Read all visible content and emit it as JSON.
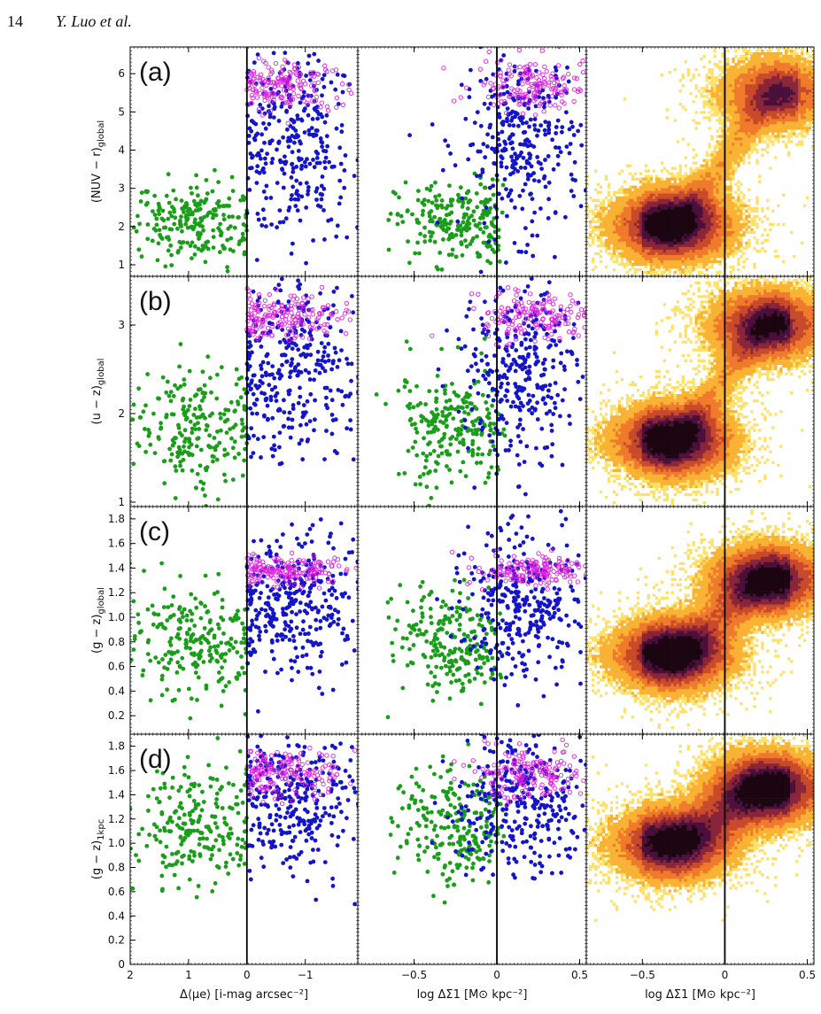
{
  "header": {
    "page_number": "14",
    "running_head": "Y. Luo et al."
  },
  "chart_data": {
    "type": "scatter",
    "layout": "4 rows × 3 columns; columns 1–2 scatter, column 3 density histogram",
    "colors": {
      "green": "#1a9e1a",
      "blue": "#1414c8",
      "magenta": "#e020e0",
      "divider": "#000000"
    },
    "columns": [
      {
        "xlabel": "Δ⟨μe⟩ [i-mag arcsec⁻²]",
        "xlim": [
          2,
          -1.9
        ],
        "xticks": [
          2,
          1,
          0,
          -1
        ],
        "xtick_labels": [
          "2",
          "1",
          "0",
          "−1"
        ],
        "divider_x": 0
      },
      {
        "xlabel": "log ΔΣ1 [M⊙ kpc⁻²]",
        "xlim": [
          -0.84,
          0.54
        ],
        "xticks": [
          -0.5,
          0,
          0.5
        ],
        "xtick_labels": [
          "−0.5",
          "0",
          "0.5"
        ],
        "divider_x": 0
      },
      {
        "xlabel": "log ΔΣ1 [M⊙ kpc⁻²]",
        "xlim": [
          -0.84,
          0.54
        ],
        "xticks": [
          -0.5,
          0,
          0.5
        ],
        "xtick_labels": [
          "−0.5",
          "0",
          "0.5"
        ],
        "divider_x": 0
      }
    ],
    "rows": [
      {
        "panel": "(a)",
        "ylabel": "(NUV − r)global",
        "ylabel_main": "(NUV − r)",
        "ylabel_sub": "global",
        "ylim": [
          0.7,
          6.7
        ],
        "yticks": [
          1,
          2,
          3,
          4,
          5,
          6
        ],
        "ytick_labels": [
          "1",
          "2",
          "3",
          "4",
          "5",
          "6"
        ],
        "groups": {
          "green": {
            "y_center": 2.1,
            "y_spread": 0.55,
            "x1_center": 0.9,
            "x2_center": -0.25
          },
          "blue": {
            "y_center": 4.2,
            "y_spread": 1.2,
            "x1_center": -0.8,
            "x2_center": 0.15
          },
          "magenta": {
            "y_center": 5.7,
            "y_spread": 0.35,
            "x1_center": -0.6,
            "x2_center": 0.22
          }
        },
        "density_peaks": [
          {
            "x": -0.3,
            "y": 2.05,
            "w": 1.0
          },
          {
            "x": 0.3,
            "y": 5.5,
            "w": 0.6
          }
        ]
      },
      {
        "panel": "(b)",
        "ylabel": "(u − z)global",
        "ylabel_main": "(u − z)",
        "ylabel_sub": "global",
        "ylim": [
          0.95,
          3.55
        ],
        "yticks": [
          1,
          2,
          3
        ],
        "ytick_labels": [
          "1",
          "2",
          "3"
        ],
        "groups": {
          "green": {
            "y_center": 1.85,
            "y_spread": 0.35,
            "x1_center": 0.9,
            "x2_center": -0.25
          },
          "blue": {
            "y_center": 2.5,
            "y_spread": 0.5,
            "x1_center": -0.8,
            "x2_center": 0.15
          },
          "magenta": {
            "y_center": 3.1,
            "y_spread": 0.13,
            "x1_center": -0.6,
            "x2_center": 0.22
          }
        },
        "density_peaks": [
          {
            "x": -0.3,
            "y": 1.7,
            "w": 1.0
          },
          {
            "x": 0.25,
            "y": 3.0,
            "w": 0.8
          }
        ]
      },
      {
        "panel": "(c)",
        "ylabel": "(g − z)global",
        "ylabel_main": "(g − z)",
        "ylabel_sub": "global",
        "ylim": [
          0.05,
          1.9
        ],
        "yticks": [
          0.2,
          0.4,
          0.6,
          0.8,
          1.0,
          1.2,
          1.4,
          1.6,
          1.8
        ],
        "ytick_labels": [
          "0.2",
          "0.4",
          "0.6",
          "0.8",
          "1.0",
          "1.2",
          "1.4",
          "1.6",
          "1.8"
        ],
        "groups": {
          "green": {
            "y_center": 0.8,
            "y_spread": 0.22,
            "x1_center": 0.9,
            "x2_center": -0.25
          },
          "blue": {
            "y_center": 1.1,
            "y_spread": 0.28,
            "x1_center": -0.8,
            "x2_center": 0.15
          },
          "magenta": {
            "y_center": 1.38,
            "y_spread": 0.06,
            "x1_center": -0.6,
            "x2_center": 0.22
          }
        },
        "density_peaks": [
          {
            "x": -0.3,
            "y": 0.7,
            "w": 1.0
          },
          {
            "x": 0.25,
            "y": 1.3,
            "w": 0.9
          }
        ]
      },
      {
        "panel": "(d)",
        "ylabel": "(g − z)1kpc",
        "ylabel_main": "(g − z)",
        "ylabel_sub": "1kpc",
        "ylim": [
          0,
          1.9
        ],
        "yticks": [
          0,
          0.2,
          0.4,
          0.6,
          0.8,
          1.0,
          1.2,
          1.4,
          1.6,
          1.8
        ],
        "ytick_labels": [
          "0",
          "0.2",
          "0.4",
          "0.6",
          "0.8",
          "1.0",
          "1.2",
          "1.4",
          "1.6",
          "1.8"
        ],
        "groups": {
          "green": {
            "y_center": 1.15,
            "y_spread": 0.25,
            "x1_center": 0.9,
            "x2_center": -0.25
          },
          "blue": {
            "y_center": 1.35,
            "y_spread": 0.3,
            "x1_center": -0.8,
            "x2_center": 0.15
          },
          "magenta": {
            "y_center": 1.57,
            "y_spread": 0.1,
            "x1_center": -0.6,
            "x2_center": 0.22
          }
        },
        "density_peaks": [
          {
            "x": -0.3,
            "y": 1.0,
            "w": 0.9
          },
          {
            "x": 0.25,
            "y": 1.45,
            "w": 1.0
          }
        ]
      }
    ]
  }
}
